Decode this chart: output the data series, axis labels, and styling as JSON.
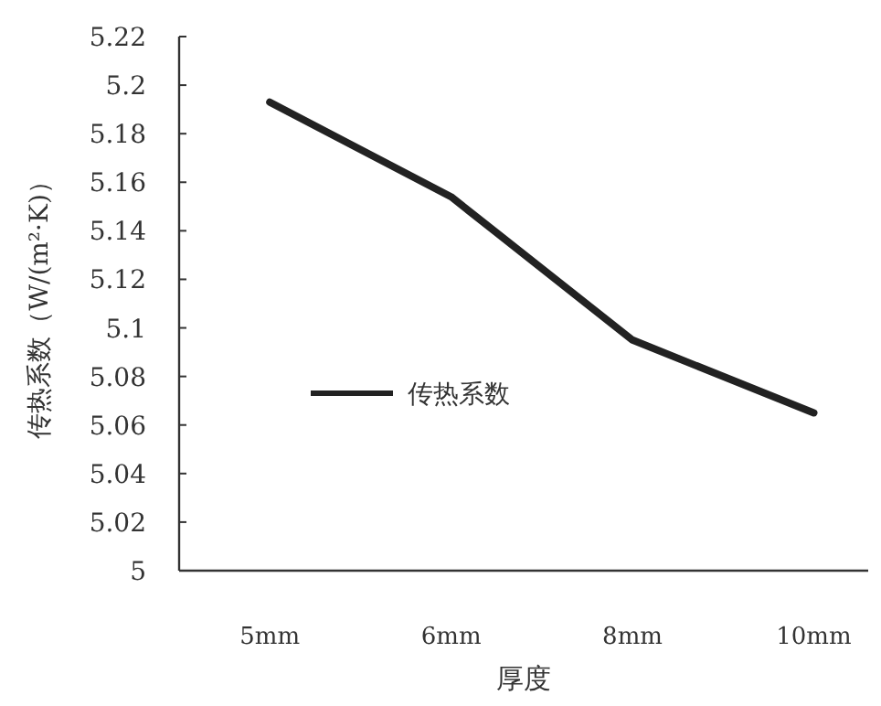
{
  "chart_data": {
    "type": "line",
    "xlabel": "厚度",
    "ylabel": "传热系数（W/(m²·K)）",
    "categories": [
      "5mm",
      "6mm",
      "8mm",
      "10mm"
    ],
    "series": [
      {
        "name": "传热系数",
        "color": "#222222",
        "values": [
          5.193,
          5.154,
          5.095,
          5.065
        ]
      }
    ],
    "ylim": [
      5,
      5.22
    ],
    "yticks": [
      5,
      5.02,
      5.04,
      5.06,
      5.08,
      5.1,
      5.12,
      5.14,
      5.16,
      5.18,
      5.2,
      5.22
    ],
    "grid": false,
    "legend": "center",
    "marker": "none",
    "line_style": "solid"
  }
}
